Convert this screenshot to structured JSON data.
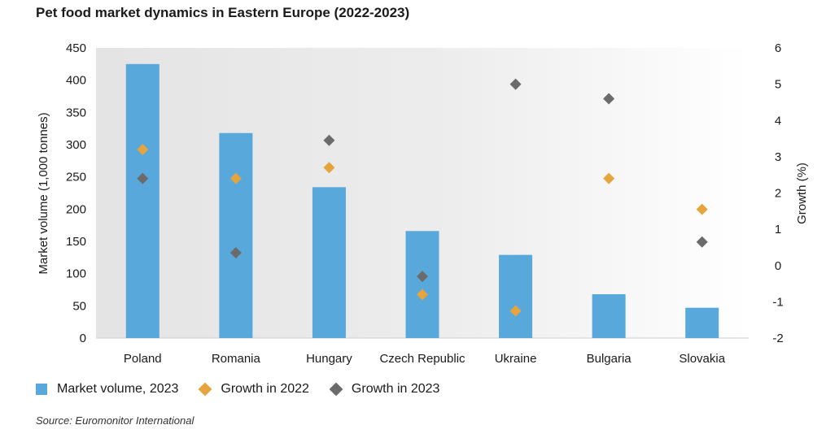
{
  "chart_data": {
    "type": "bar",
    "title": "Pet food market dynamics in Eastern Europe (2022-2023)",
    "categories": [
      "Poland",
      "Romania",
      "Hungary",
      "Czech Republic",
      "Ukraine",
      "Bulgaria",
      "Slovakia"
    ],
    "series": [
      {
        "name": "Market volume, 2023",
        "type": "bar",
        "axis": "left",
        "color": "#58a8dc",
        "values": [
          425,
          318,
          234,
          166,
          129,
          68,
          47
        ]
      },
      {
        "name": "Growth in 2022",
        "type": "scatter",
        "axis": "right",
        "marker": "diamond",
        "color": "#e6a43c",
        "values": [
          3.2,
          2.4,
          2.7,
          -0.8,
          -1.25,
          2.4,
          1.55
        ]
      },
      {
        "name": "Growth in 2023",
        "type": "scatter",
        "axis": "right",
        "marker": "diamond",
        "color": "#6b6b6b",
        "values": [
          2.4,
          0.35,
          3.45,
          -0.3,
          5.0,
          4.6,
          0.65
        ]
      }
    ],
    "ylabel": "Market volume (1,000 tonnes)",
    "ylim": [
      0,
      450
    ],
    "yticks": [
      "0",
      "50",
      "100",
      "150",
      "200",
      "250",
      "300",
      "350",
      "400",
      "450"
    ],
    "y2label": "Growth (%)",
    "y2lim": [
      -2,
      6
    ],
    "y2ticks": [
      "-2",
      "-1",
      "0",
      "1",
      "2",
      "3",
      "4",
      "5",
      "6"
    ],
    "legend_position": "bottom-left",
    "grid": false
  },
  "source": "Source: Euromonitor International"
}
